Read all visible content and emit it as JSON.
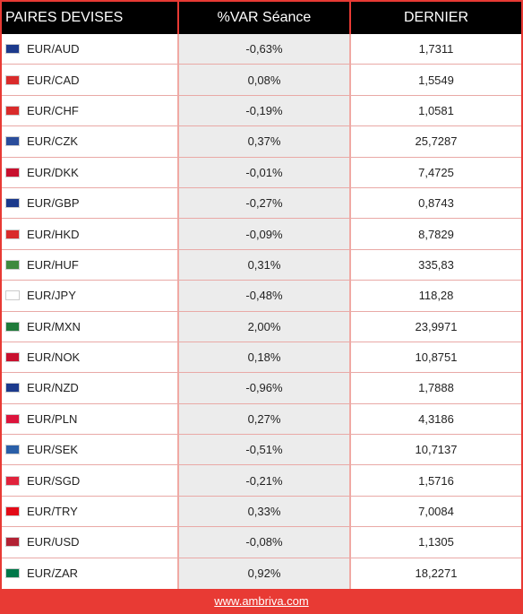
{
  "header": {
    "col1": "PAIRES DEVISES",
    "col2": "%VAR Séance",
    "col3": "DERNIER"
  },
  "rows": [
    {
      "pair": "EUR/AUD",
      "var": "-0,63%",
      "last": "1,7311",
      "flag": "au-flag-icon",
      "color": "#1c3a8c"
    },
    {
      "pair": "EUR/CAD",
      "var": "0,08%",
      "last": "1,5549",
      "flag": "ca-flag-icon",
      "color": "#d92b2b"
    },
    {
      "pair": "EUR/CHF",
      "var": "-0,19%",
      "last": "1,0581",
      "flag": "ch-flag-icon",
      "color": "#d92b2b"
    },
    {
      "pair": "EUR/CZK",
      "var": "0,37%",
      "last": "25,7287",
      "flag": "cz-flag-icon",
      "color": "#2a4d9b"
    },
    {
      "pair": "EUR/DKK",
      "var": "-0,01%",
      "last": "7,4725",
      "flag": "dk-flag-icon",
      "color": "#c8102e"
    },
    {
      "pair": "EUR/GBP",
      "var": "-0,27%",
      "last": "0,8743",
      "flag": "gb-flag-icon",
      "color": "#1c3a8c"
    },
    {
      "pair": "EUR/HKD",
      "var": "-0,09%",
      "last": "8,7829",
      "flag": "hk-flag-icon",
      "color": "#d92b2b"
    },
    {
      "pair": "EUR/HUF",
      "var": "0,31%",
      "last": "335,83",
      "flag": "hu-flag-icon",
      "color": "#3f8a3f"
    },
    {
      "pair": "EUR/JPY",
      "var": "-0,48%",
      "last": "118,28",
      "flag": "jp-flag-icon",
      "color": "#ffffff"
    },
    {
      "pair": "EUR/MXN",
      "var": "2,00%",
      "last": "23,9971",
      "flag": "mx-flag-icon",
      "color": "#1f7a3a"
    },
    {
      "pair": "EUR/NOK",
      "var": "0,18%",
      "last": "10,8751",
      "flag": "no-flag-icon",
      "color": "#c8102e"
    },
    {
      "pair": "EUR/NZD",
      "var": "-0,96%",
      "last": "1,7888",
      "flag": "nz-flag-icon",
      "color": "#1c3a8c"
    },
    {
      "pair": "EUR/PLN",
      "var": "0,27%",
      "last": "4,3186",
      "flag": "pl-flag-icon",
      "color": "#dc143c"
    },
    {
      "pair": "EUR/SEK",
      "var": "-0,51%",
      "last": "10,7137",
      "flag": "se-flag-icon",
      "color": "#2a5fa8"
    },
    {
      "pair": "EUR/SGD",
      "var": "-0,21%",
      "last": "1,5716",
      "flag": "sg-flag-icon",
      "color": "#e0223c"
    },
    {
      "pair": "EUR/TRY",
      "var": "0,33%",
      "last": "7,0084",
      "flag": "tr-flag-icon",
      "color": "#e30a17"
    },
    {
      "pair": "EUR/USD",
      "var": "-0,08%",
      "last": "1,1305",
      "flag": "us-flag-icon",
      "color": "#b22234"
    },
    {
      "pair": "EUR/ZAR",
      "var": "0,92%",
      "last": "18,2271",
      "flag": "za-flag-icon",
      "color": "#007749"
    }
  ],
  "footer": {
    "link": "www.ambriva.com"
  },
  "theme": {
    "accent": "#e83a34",
    "header_bg": "#000000"
  }
}
